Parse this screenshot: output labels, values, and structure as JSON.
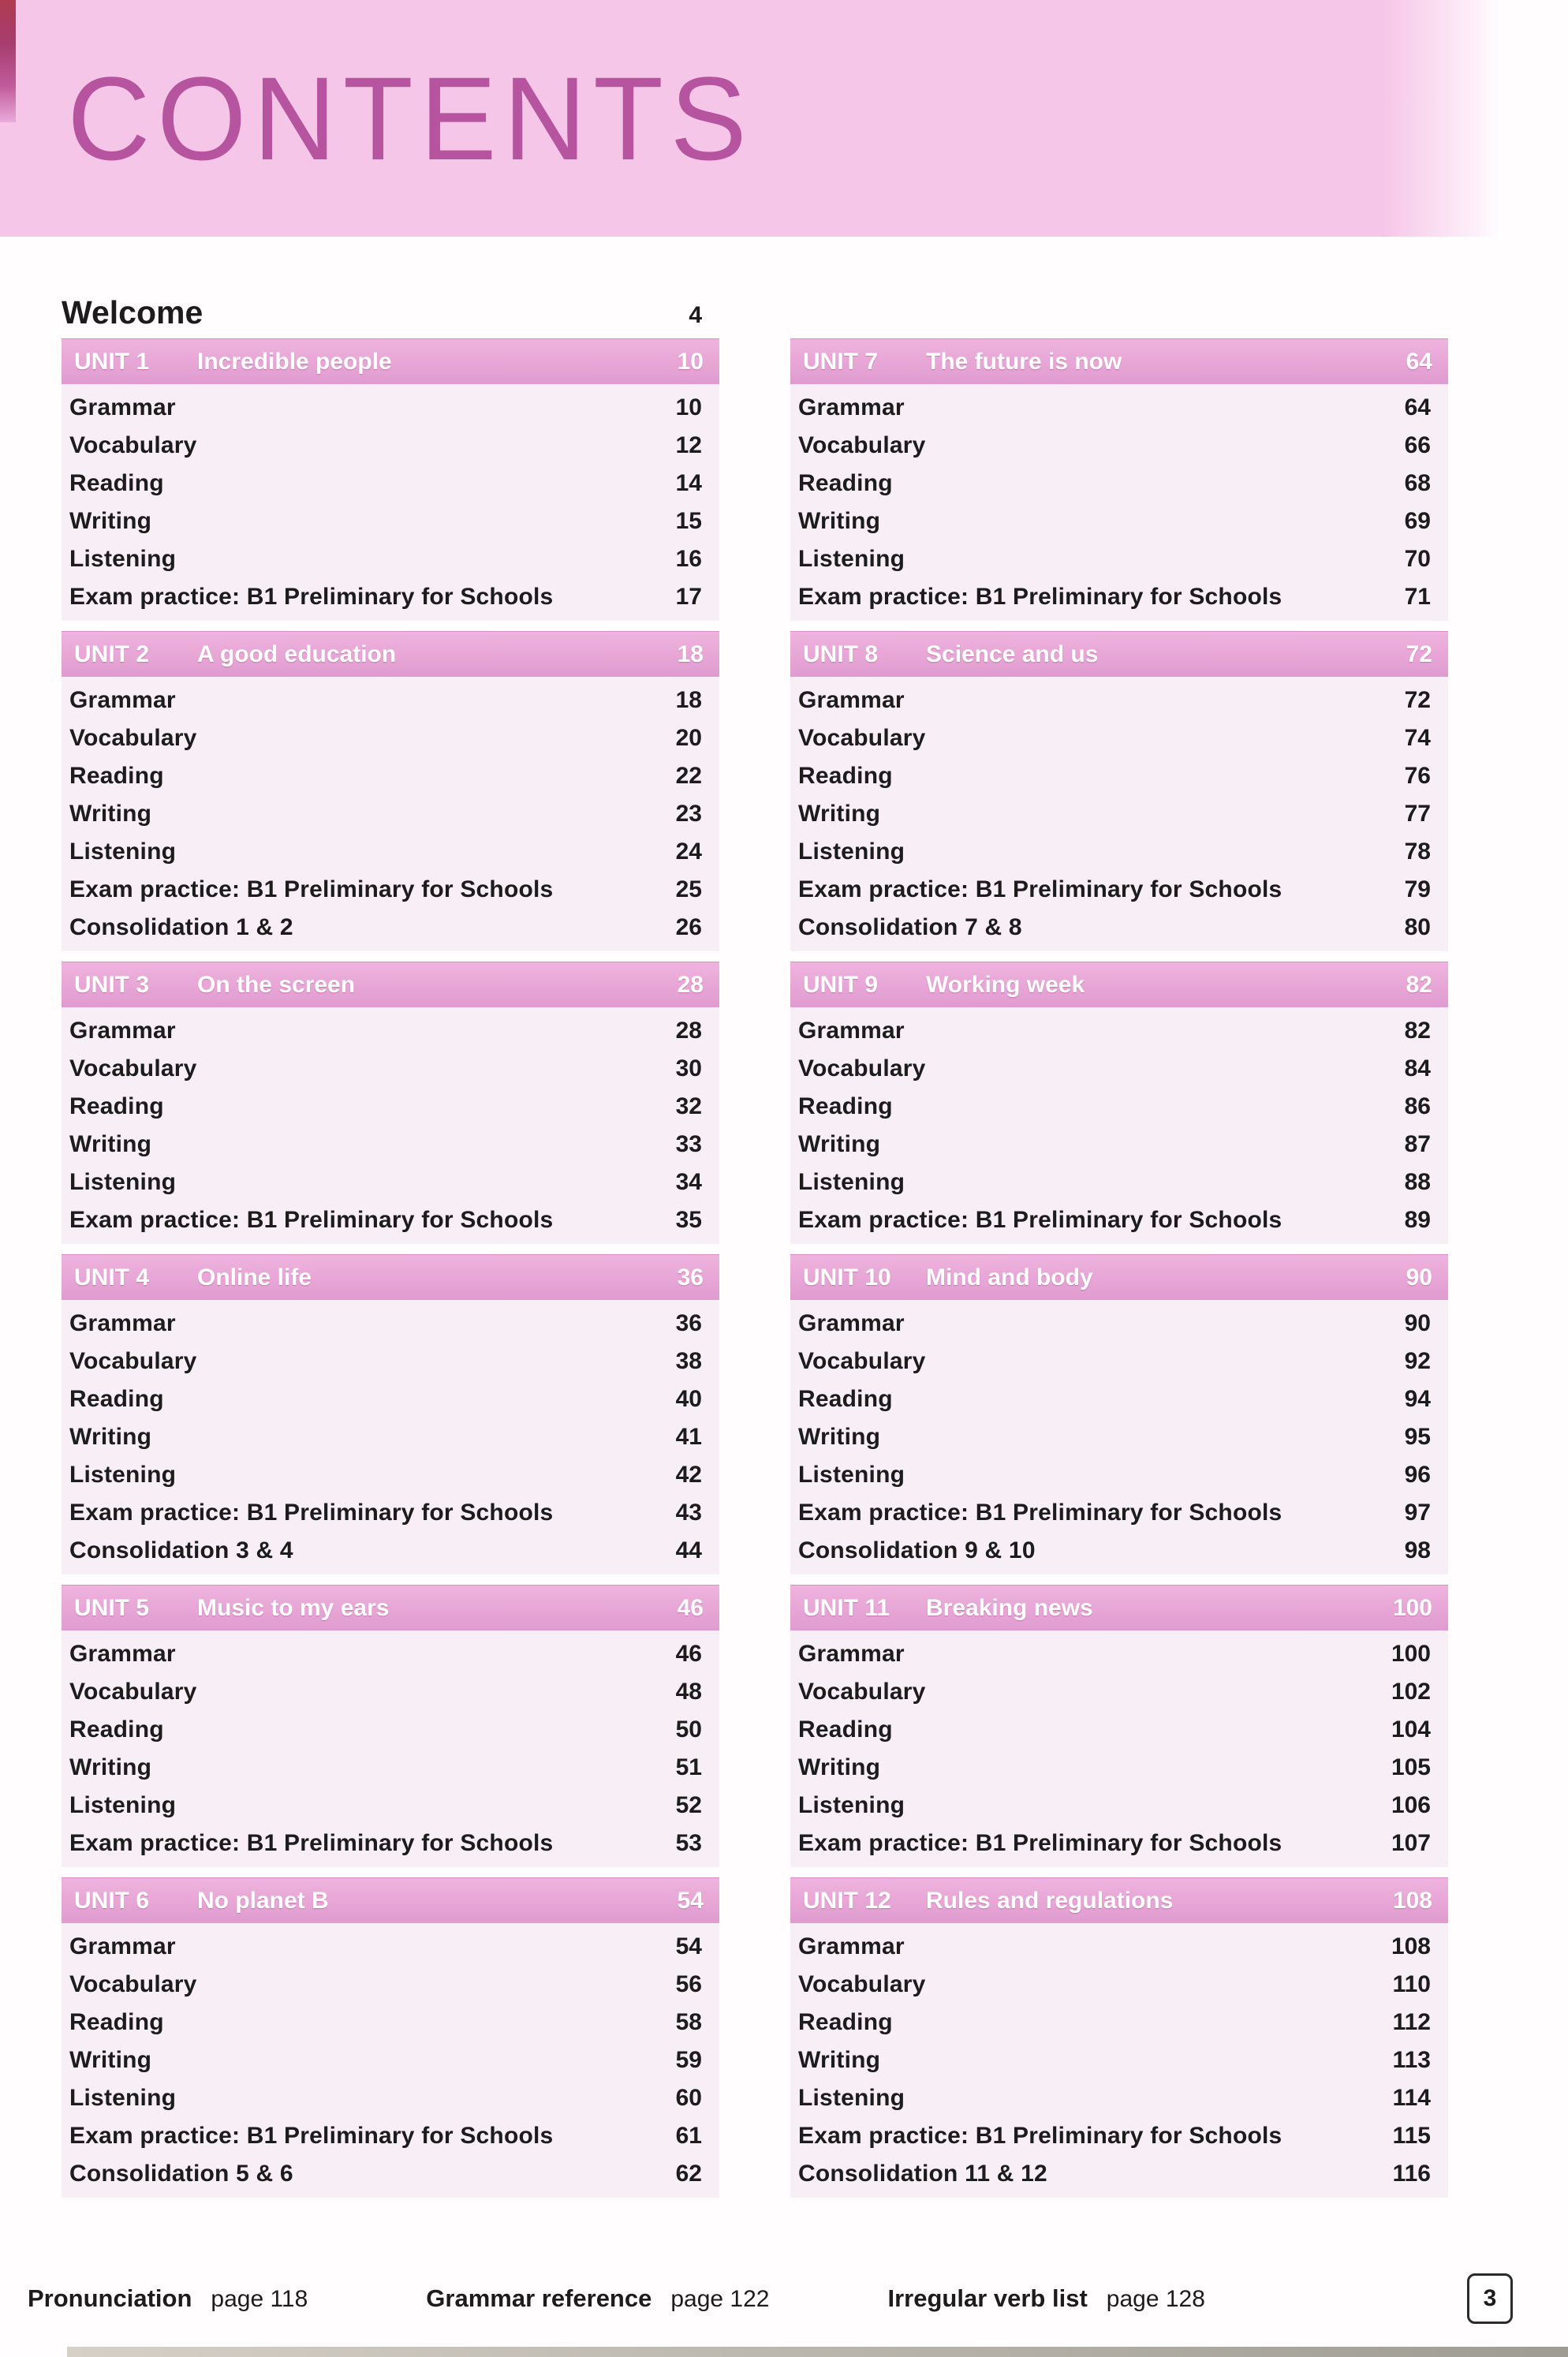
{
  "header": {
    "title": "CONTENTS"
  },
  "welcome": {
    "label": "Welcome",
    "page": "4"
  },
  "units": [
    {
      "id": "UNIT 1",
      "title": "Incredible people",
      "page": "10",
      "rows": [
        {
          "label": "Grammar",
          "page": "10"
        },
        {
          "label": "Vocabulary",
          "page": "12"
        },
        {
          "label": "Reading",
          "page": "14"
        },
        {
          "label": "Writing",
          "page": "15"
        },
        {
          "label": "Listening",
          "page": "16"
        },
        {
          "label": "Exam practice: B1 Preliminary for Schools",
          "page": "17"
        }
      ]
    },
    {
      "id": "UNIT 2",
      "title": "A good education",
      "page": "18",
      "rows": [
        {
          "label": "Grammar",
          "page": "18"
        },
        {
          "label": "Vocabulary",
          "page": "20"
        },
        {
          "label": "Reading",
          "page": "22"
        },
        {
          "label": "Writing",
          "page": "23"
        },
        {
          "label": "Listening",
          "page": "24"
        },
        {
          "label": "Exam practice: B1 Preliminary for Schools",
          "page": "25"
        },
        {
          "label": "Consolidation 1 & 2",
          "page": "26"
        }
      ]
    },
    {
      "id": "UNIT 3",
      "title": "On the screen",
      "page": "28",
      "rows": [
        {
          "label": "Grammar",
          "page": "28"
        },
        {
          "label": "Vocabulary",
          "page": "30"
        },
        {
          "label": "Reading",
          "page": "32"
        },
        {
          "label": "Writing",
          "page": "33"
        },
        {
          "label": "Listening",
          "page": "34"
        },
        {
          "label": "Exam practice: B1 Preliminary for Schools",
          "page": "35"
        }
      ]
    },
    {
      "id": "UNIT 4",
      "title": "Online life",
      "page": "36",
      "rows": [
        {
          "label": "Grammar",
          "page": "36"
        },
        {
          "label": "Vocabulary",
          "page": "38"
        },
        {
          "label": "Reading",
          "page": "40"
        },
        {
          "label": "Writing",
          "page": "41"
        },
        {
          "label": "Listening",
          "page": "42"
        },
        {
          "label": "Exam practice: B1 Preliminary for Schools",
          "page": "43"
        },
        {
          "label": "Consolidation 3 & 4",
          "page": "44"
        }
      ]
    },
    {
      "id": "UNIT 5",
      "title": "Music to my ears",
      "page": "46",
      "rows": [
        {
          "label": "Grammar",
          "page": "46"
        },
        {
          "label": "Vocabulary",
          "page": "48"
        },
        {
          "label": "Reading",
          "page": "50"
        },
        {
          "label": "Writing",
          "page": "51"
        },
        {
          "label": "Listening",
          "page": "52"
        },
        {
          "label": "Exam practice: B1 Preliminary for Schools",
          "page": "53"
        }
      ]
    },
    {
      "id": "UNIT 6",
      "title": "No planet B",
      "page": "54",
      "rows": [
        {
          "label": "Grammar",
          "page": "54"
        },
        {
          "label": "Vocabulary",
          "page": "56"
        },
        {
          "label": "Reading",
          "page": "58"
        },
        {
          "label": "Writing",
          "page": "59"
        },
        {
          "label": "Listening",
          "page": "60"
        },
        {
          "label": "Exam practice: B1 Preliminary for Schools",
          "page": "61"
        },
        {
          "label": "Consolidation 5 & 6",
          "page": "62"
        }
      ]
    },
    {
      "id": "UNIT 7",
      "title": "The future is now",
      "page": "64",
      "rows": [
        {
          "label": "Grammar",
          "page": "64"
        },
        {
          "label": "Vocabulary",
          "page": "66"
        },
        {
          "label": "Reading",
          "page": "68"
        },
        {
          "label": "Writing",
          "page": "69"
        },
        {
          "label": "Listening",
          "page": "70"
        },
        {
          "label": "Exam practice: B1 Preliminary for Schools",
          "page": "71"
        }
      ]
    },
    {
      "id": "UNIT 8",
      "title": "Science and us",
      "page": "72",
      "rows": [
        {
          "label": "Grammar",
          "page": "72"
        },
        {
          "label": "Vocabulary",
          "page": "74"
        },
        {
          "label": "Reading",
          "page": "76"
        },
        {
          "label": "Writing",
          "page": "77"
        },
        {
          "label": "Listening",
          "page": "78"
        },
        {
          "label": "Exam practice: B1 Preliminary for Schools",
          "page": "79"
        },
        {
          "label": "Consolidation 7 & 8",
          "page": "80"
        }
      ]
    },
    {
      "id": "UNIT 9",
      "title": "Working week",
      "page": "82",
      "rows": [
        {
          "label": "Grammar",
          "page": "82"
        },
        {
          "label": "Vocabulary",
          "page": "84"
        },
        {
          "label": "Reading",
          "page": "86"
        },
        {
          "label": "Writing",
          "page": "87"
        },
        {
          "label": "Listening",
          "page": "88"
        },
        {
          "label": "Exam practice: B1 Preliminary for Schools",
          "page": "89"
        }
      ]
    },
    {
      "id": "UNIT 10",
      "title": "Mind and body",
      "page": "90",
      "rows": [
        {
          "label": "Grammar",
          "page": "90"
        },
        {
          "label": "Vocabulary",
          "page": "92"
        },
        {
          "label": "Reading",
          "page": "94"
        },
        {
          "label": "Writing",
          "page": "95"
        },
        {
          "label": "Listening",
          "page": "96"
        },
        {
          "label": "Exam practice: B1 Preliminary for Schools",
          "page": "97"
        },
        {
          "label": "Consolidation 9 & 10",
          "page": "98"
        }
      ]
    },
    {
      "id": "UNIT 11",
      "title": "Breaking news",
      "page": "100",
      "rows": [
        {
          "label": "Grammar",
          "page": "100"
        },
        {
          "label": "Vocabulary",
          "page": "102"
        },
        {
          "label": "Reading",
          "page": "104"
        },
        {
          "label": "Writing",
          "page": "105"
        },
        {
          "label": "Listening",
          "page": "106"
        },
        {
          "label": "Exam practice: B1 Preliminary for Schools",
          "page": "107"
        }
      ]
    },
    {
      "id": "UNIT 12",
      "title": "Rules and regulations",
      "page": "108",
      "rows": [
        {
          "label": "Grammar",
          "page": "108"
        },
        {
          "label": "Vocabulary",
          "page": "110"
        },
        {
          "label": "Reading",
          "page": "112"
        },
        {
          "label": "Writing",
          "page": "113"
        },
        {
          "label": "Listening",
          "page": "114"
        },
        {
          "label": "Exam practice: B1 Preliminary for Schools",
          "page": "115"
        },
        {
          "label": "Consolidation 11 & 12",
          "page": "116"
        }
      ]
    }
  ],
  "footer": {
    "references": [
      {
        "label": "Pronunciation",
        "page": "page 118"
      },
      {
        "label": "Grammar reference",
        "page": "page 122"
      },
      {
        "label": "Irregular verb list",
        "page": "page 128"
      }
    ],
    "page_number": "3"
  },
  "colors": {
    "banner_background": "#f6c6e8",
    "title_text": "#b6549f",
    "unit_bar": "#e5a3d4",
    "unit_bar_text": "#ffffff",
    "panel_background": "#f8eef5",
    "body_text": "#1c1c1c"
  }
}
